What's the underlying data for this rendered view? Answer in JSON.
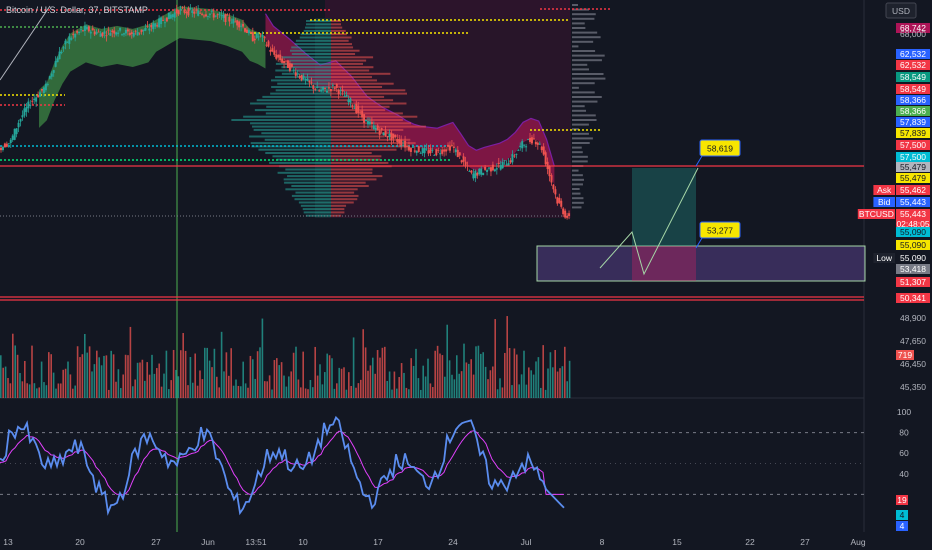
{
  "title": "Bitcoin / U.S. Dollar, 37, BITSTAMP",
  "currency_button": "USD",
  "colors": {
    "background": "#131722",
    "up": "#26a69a",
    "down": "#ef5350",
    "cloud_green": "#4caf50",
    "cloud_magenta": "#c2185b",
    "rsi_line": "#5b8def",
    "rsi_signal": "#e040fb",
    "crosshair": "#4caf50",
    "level_red": "#f23645"
  },
  "chart_data": [
    {
      "type": "candlestick",
      "ylim": [
        49800,
        69500
      ],
      "x_ticks": [
        "13",
        "20",
        "27",
        "Jun",
        "13:51",
        "10",
        "17",
        "24",
        "Jul",
        "8",
        "15",
        "22",
        "27",
        "Aug"
      ],
      "price_path": [
        [
          0,
          59800
        ],
        [
          3,
          60200
        ],
        [
          5,
          61500
        ],
        [
          8,
          62800
        ],
        [
          12,
          63800
        ],
        [
          15,
          65800
        ],
        [
          18,
          67000
        ],
        [
          22,
          67600
        ],
        [
          26,
          67300
        ],
        [
          30,
          67500
        ],
        [
          34,
          67300
        ],
        [
          38,
          67600
        ],
        [
          42,
          68200
        ],
        [
          46,
          68800
        ],
        [
          50,
          68700
        ],
        [
          54,
          68600
        ],
        [
          58,
          68300
        ],
        [
          62,
          67900
        ],
        [
          65,
          67000
        ],
        [
          67,
          67200
        ],
        [
          70,
          66000
        ],
        [
          74,
          65200
        ],
        [
          78,
          64300
        ],
        [
          82,
          63500
        ],
        [
          86,
          63800
        ],
        [
          90,
          62800
        ],
        [
          94,
          61500
        ],
        [
          98,
          60800
        ],
        [
          102,
          60300
        ],
        [
          105,
          59800
        ],
        [
          108,
          59600
        ],
        [
          112,
          59500
        ],
        [
          116,
          59900
        ],
        [
          119,
          58800
        ],
        [
          121,
          58000
        ],
        [
          124,
          58300
        ],
        [
          128,
          58600
        ],
        [
          131,
          59000
        ],
        [
          134,
          60000
        ],
        [
          137,
          60400
        ],
        [
          139,
          59800
        ],
        [
          141,
          58000
        ],
        [
          143,
          56300
        ],
        [
          145,
          55400
        ],
        [
          146,
          55100
        ]
      ],
      "price_labels": [
        {
          "value": "68,742",
          "bg": "#ad1457",
          "fg": "#ffffff"
        },
        {
          "value": "68,000",
          "bg": "",
          "fg": "#b2b5be"
        },
        {
          "value": "62,532",
          "bg": "#2962ff",
          "fg": "#ffffff"
        },
        {
          "value": "62,532",
          "bg": "#f23645",
          "fg": "#ffffff"
        },
        {
          "value": "58,549",
          "bg": "#089981",
          "fg": "#ffffff"
        },
        {
          "value": "58,549",
          "bg": "#f23645",
          "fg": "#ffffff"
        },
        {
          "value": "58,366",
          "bg": "#2962ff",
          "fg": "#ffffff"
        },
        {
          "value": "58,366",
          "bg": "#4caf50",
          "fg": "#ffffff"
        },
        {
          "value": "57,839",
          "bg": "#2962ff",
          "fg": "#ffffff"
        },
        {
          "value": "57,839",
          "bg": "#f7e600",
          "fg": "#131722"
        },
        {
          "value": "57,500",
          "bg": "#f23645",
          "fg": "#ffffff"
        },
        {
          "value": "57,500",
          "bg": "#00bcd4",
          "fg": "#ffffff"
        },
        {
          "value": "55,479",
          "bg": "#b2b5be",
          "fg": "#131722"
        },
        {
          "value": "55,479",
          "bg": "#f7e600",
          "fg": "#131722"
        },
        {
          "value": "55,462",
          "bg": "#f23645",
          "fg": "#ffffff",
          "side": "Ask"
        },
        {
          "value": "55,443",
          "bg": "#2962ff",
          "fg": "#ffffff",
          "side": "Bid"
        },
        {
          "value": "55,443",
          "bg": "#f23645",
          "fg": "#ffffff",
          "side": "BTCUSD"
        },
        {
          "value": "02:48:05",
          "bg": "#f23645",
          "fg": "#ffffff"
        },
        {
          "value": "55,090",
          "bg": "#00bcd4",
          "fg": "#131722"
        },
        {
          "value": "55,090",
          "bg": "#f7e600",
          "fg": "#131722"
        },
        {
          "value": "55,090",
          "bg": "#131722",
          "fg": "#ffffff",
          "side": "Low"
        },
        {
          "value": "53,418",
          "bg": "#787b86",
          "fg": "#ffffff"
        },
        {
          "value": "51,307",
          "bg": "#f23645",
          "fg": "#ffffff"
        },
        {
          "value": "50,341",
          "bg": "#f23645",
          "fg": "#ffffff"
        }
      ],
      "annotations": [
        {
          "text": "58,619",
          "kind": "target_label"
        },
        {
          "text": "53,277",
          "kind": "stop_label"
        }
      ],
      "horizontal_levels": [
        {
          "value": 55090,
          "color": "#f23645"
        },
        {
          "value": 51307,
          "color": "#f23645"
        },
        {
          "value": 50341,
          "color": "#f23645"
        }
      ],
      "volume_pane": {
        "tick_labels": [
          "48,900",
          "47,650",
          "46,450",
          "45,350"
        ],
        "last_volume_label": "719"
      },
      "rsi_pane": {
        "ylim": [
          0,
          100
        ],
        "tick_labels": [
          "100",
          "80",
          "60",
          "40"
        ],
        "labels": [
          {
            "value": "19",
            "bg": "#f23645",
            "fg": "#ffffff"
          },
          {
            "value": "4",
            "bg": "#00bcd4",
            "fg": "#131722"
          },
          {
            "value": "4",
            "bg": "#2962ff",
            "fg": "#ffffff"
          }
        ]
      }
    }
  ]
}
